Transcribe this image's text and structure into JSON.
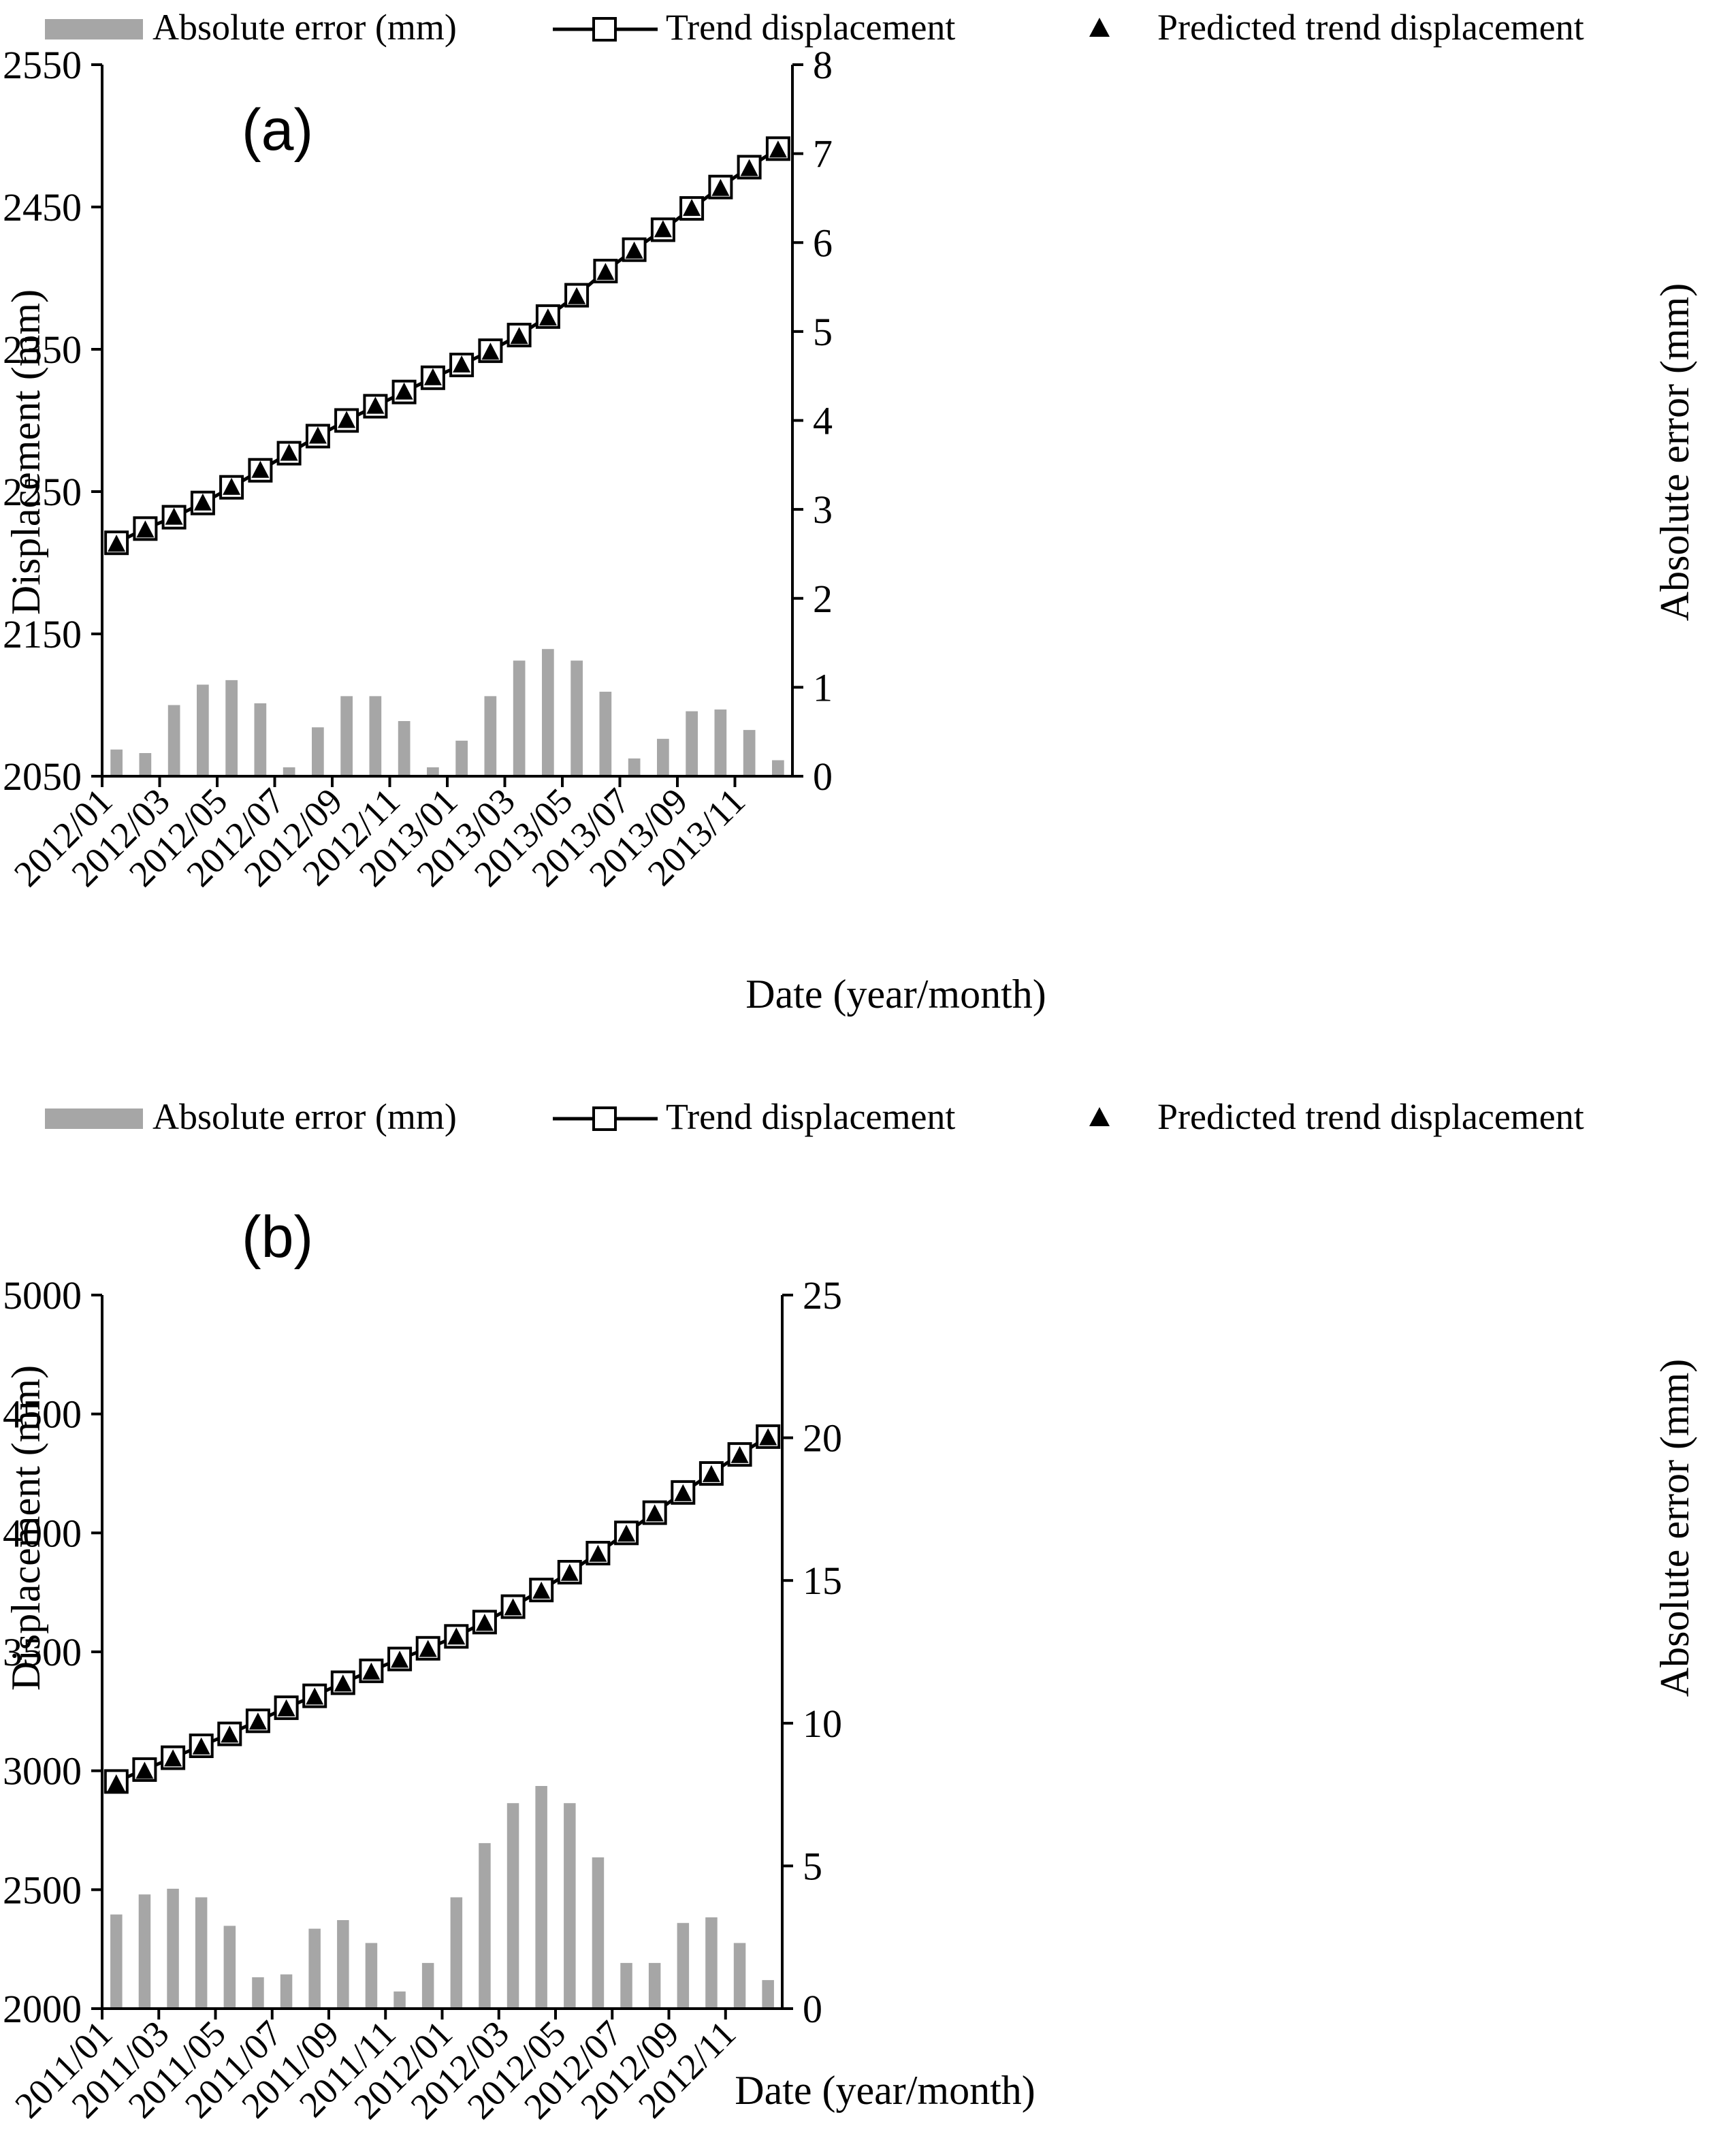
{
  "chart_data": [
    {
      "type": "bar+line",
      "panel_label": "(a)",
      "legend": {
        "bar_label": "Absolute error (mm)",
        "line_label": "Trend displacement",
        "pred_label": "Predicted trend displacement",
        "placement": "top"
      },
      "xlabel": "Date (year/month)",
      "ylabel_left": "Displacement (mm)",
      "ylabel_right": "Absolute error (mm)",
      "ylim_left": [
        2050,
        2550
      ],
      "ylim_right": [
        0,
        8
      ],
      "yticks_left": [
        "2050",
        "2150",
        "2250",
        "2350",
        "2450",
        "2550"
      ],
      "yticks_right": [
        "0",
        "1",
        "2",
        "3",
        "4",
        "5",
        "6",
        "7",
        "8"
      ],
      "xtick_labels": [
        "2012/01",
        "2012/03",
        "2012/05",
        "2012/07",
        "2012/09",
        "2012/11",
        "2013/01",
        "2013/03",
        "2013/05",
        "2013/07",
        "2013/09",
        "2013/11"
      ],
      "categories": [
        "2012/01",
        "2012/02",
        "2012/03",
        "2012/04",
        "2012/05",
        "2012/06",
        "2012/07",
        "2012/08",
        "2012/09",
        "2012/10",
        "2012/11",
        "2012/12",
        "2013/01",
        "2013/02",
        "2013/03",
        "2013/04",
        "2013/05",
        "2013/06",
        "2013/07",
        "2013/08",
        "2013/09",
        "2013/10",
        "2013/11",
        "2013/12"
      ],
      "series": [
        {
          "name": "Trend displacement",
          "values": [
            2214,
            2224,
            2232,
            2242,
            2253,
            2265,
            2277,
            2289,
            2300,
            2310,
            2320,
            2330,
            2339,
            2349,
            2360,
            2373,
            2388,
            2405,
            2420,
            2434,
            2449,
            2464,
            2478,
            2491
          ]
        },
        {
          "name": "Predicted trend displacement",
          "values": [
            2213,
            2223,
            2232,
            2242,
            2253,
            2265,
            2277,
            2289,
            2300,
            2310,
            2320,
            2330,
            2339,
            2348,
            2359,
            2372,
            2387,
            2404,
            2419,
            2434,
            2449,
            2463,
            2477,
            2490
          ]
        },
        {
          "name": "Absolute error (mm)",
          "values": [
            0.3,
            0.26,
            0.8,
            1.03,
            1.08,
            0.82,
            0.1,
            0.55,
            0.9,
            0.9,
            0.62,
            0.1,
            0.4,
            0.9,
            1.3,
            1.43,
            1.3,
            0.95,
            0.2,
            0.42,
            0.73,
            0.75,
            0.52,
            0.18
          ]
        }
      ]
    },
    {
      "type": "bar+line",
      "panel_label": "(b)",
      "legend": {
        "bar_label": "Absolute error (mm)",
        "line_label": "Trend displacement",
        "pred_label": "Predicted trend displacement",
        "placement": "top"
      },
      "xlabel": "Date (year/month)",
      "ylabel_left": "Displacement (mm)",
      "ylabel_right": "Absolute error (mm)",
      "ylim_left": [
        2000,
        5000
      ],
      "ylim_right": [
        0,
        25
      ],
      "yticks_left": [
        "2000",
        "2500",
        "3000",
        "3500",
        "4000",
        "4500",
        "5000"
      ],
      "yticks_right": [
        "0",
        "5",
        "10",
        "15",
        "20",
        "25"
      ],
      "xtick_labels": [
        "2011/01",
        "2011/03",
        "2011/05",
        "2011/07",
        "2011/09",
        "2011/11",
        "2012/01",
        "2012/03",
        "2012/05",
        "2012/07",
        "2012/09",
        "2012/11"
      ],
      "categories": [
        "2011/01",
        "2011/02",
        "2011/03",
        "2011/04",
        "2011/05",
        "2011/06",
        "2011/07",
        "2011/08",
        "2011/09",
        "2011/10",
        "2011/11",
        "2011/12",
        "2012/01",
        "2012/02",
        "2012/03",
        "2012/04",
        "2012/05",
        "2012/06",
        "2012/07",
        "2012/08",
        "2012/09",
        "2012/10",
        "2012/11",
        "2012/12"
      ],
      "series": [
        {
          "name": "Trend displacement",
          "values": [
            2955,
            3005,
            3055,
            3105,
            3155,
            3210,
            3265,
            3315,
            3370,
            3420,
            3470,
            3515,
            3565,
            3625,
            3690,
            3760,
            3835,
            3915,
            4000,
            4085,
            4170,
            4250,
            4330,
            4405
          ]
        },
        {
          "name": "Predicted trend displacement",
          "values": [
            2945,
            2998,
            3050,
            3100,
            3150,
            3205,
            3260,
            3310,
            3365,
            3415,
            3465,
            3510,
            3562,
            3620,
            3685,
            3755,
            3830,
            3910,
            3995,
            4080,
            4165,
            4245,
            4325,
            4400
          ]
        },
        {
          "name": "Absolute error (mm)",
          "values": [
            3.3,
            4.0,
            4.2,
            3.9,
            2.9,
            1.1,
            1.2,
            2.8,
            3.1,
            2.3,
            0.6,
            1.6,
            3.9,
            5.8,
            7.2,
            7.8,
            7.2,
            5.3,
            1.6,
            1.6,
            3.0,
            3.2,
            2.3,
            1.0
          ]
        }
      ]
    }
  ]
}
